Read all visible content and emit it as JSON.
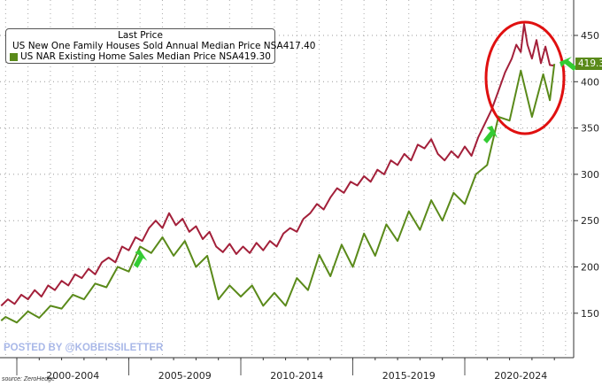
{
  "chart_data": {
    "type": "line",
    "title": "",
    "xlabel": "",
    "ylabel": "",
    "ylim": [
      120,
      480
    ],
    "xlim": [
      1999.25,
      2025.2
    ],
    "y_ticks": [
      150,
      200,
      250,
      300,
      350,
      400,
      450
    ],
    "period_labels": [
      {
        "label": "2000-2004",
        "from": 2000,
        "to": 2005
      },
      {
        "label": "2005-2009",
        "from": 2005,
        "to": 2010
      },
      {
        "label": "2010-2014",
        "from": 2010,
        "to": 2015
      },
      {
        "label": "2015-2019",
        "from": 2015,
        "to": 2020
      },
      {
        "label": "2020-2024",
        "from": 2020,
        "to": 2025
      }
    ],
    "legend_title": "Last Price",
    "grid": true,
    "series": [
      {
        "name": "US New One Family Houses Sold Annual Median Price NSA",
        "last": "417.40",
        "color": "#a3203a",
        "points": [
          [
            1999.3,
            158
          ],
          [
            1999.6,
            165
          ],
          [
            1999.9,
            160
          ],
          [
            2000.2,
            170
          ],
          [
            2000.5,
            165
          ],
          [
            2000.8,
            175
          ],
          [
            2001.1,
            168
          ],
          [
            2001.4,
            180
          ],
          [
            2001.7,
            175
          ],
          [
            2002,
            185
          ],
          [
            2002.3,
            180
          ],
          [
            2002.6,
            192
          ],
          [
            2002.9,
            188
          ],
          [
            2003.2,
            198
          ],
          [
            2003.5,
            192
          ],
          [
            2003.8,
            205
          ],
          [
            2004.1,
            210
          ],
          [
            2004.4,
            205
          ],
          [
            2004.7,
            222
          ],
          [
            2005,
            218
          ],
          [
            2005.3,
            232
          ],
          [
            2005.6,
            228
          ],
          [
            2005.9,
            242
          ],
          [
            2006.2,
            250
          ],
          [
            2006.5,
            242
          ],
          [
            2006.8,
            258
          ],
          [
            2007.1,
            245
          ],
          [
            2007.4,
            252
          ],
          [
            2007.7,
            238
          ],
          [
            2008,
            244
          ],
          [
            2008.3,
            230
          ],
          [
            2008.6,
            238
          ],
          [
            2008.9,
            222
          ],
          [
            2009.2,
            216
          ],
          [
            2009.5,
            225
          ],
          [
            2009.8,
            214
          ],
          [
            2010.1,
            222
          ],
          [
            2010.4,
            215
          ],
          [
            2010.7,
            226
          ],
          [
            2011,
            218
          ],
          [
            2011.3,
            228
          ],
          [
            2011.6,
            222
          ],
          [
            2011.9,
            236
          ],
          [
            2012.2,
            242
          ],
          [
            2012.5,
            238
          ],
          [
            2012.8,
            252
          ],
          [
            2013.1,
            258
          ],
          [
            2013.4,
            268
          ],
          [
            2013.7,
            262
          ],
          [
            2014,
            275
          ],
          [
            2014.3,
            285
          ],
          [
            2014.6,
            280
          ],
          [
            2014.9,
            292
          ],
          [
            2015.2,
            288
          ],
          [
            2015.5,
            298
          ],
          [
            2015.8,
            292
          ],
          [
            2016.1,
            305
          ],
          [
            2016.4,
            300
          ],
          [
            2016.7,
            315
          ],
          [
            2017,
            310
          ],
          [
            2017.3,
            322
          ],
          [
            2017.6,
            315
          ],
          [
            2017.9,
            332
          ],
          [
            2018.2,
            328
          ],
          [
            2018.5,
            338
          ],
          [
            2018.8,
            322
          ],
          [
            2019.1,
            315
          ],
          [
            2019.4,
            325
          ],
          [
            2019.7,
            318
          ],
          [
            2020,
            330
          ],
          [
            2020.3,
            320
          ],
          [
            2020.6,
            340
          ],
          [
            2020.9,
            355
          ],
          [
            2021.2,
            370
          ],
          [
            2021.5,
            390
          ],
          [
            2021.8,
            410
          ],
          [
            2022.1,
            425
          ],
          [
            2022.3,
            440
          ],
          [
            2022.5,
            432
          ],
          [
            2022.65,
            462
          ],
          [
            2022.8,
            440
          ],
          [
            2023,
            425
          ],
          [
            2023.2,
            445
          ],
          [
            2023.4,
            420
          ],
          [
            2023.6,
            438
          ],
          [
            2023.8,
            418
          ],
          [
            2024.0,
            417.4
          ]
        ]
      },
      {
        "name": "US NAR Existing Home Sales Median Price NSA",
        "last": "419.30",
        "color": "#5a8a1a",
        "points": [
          [
            1999.3,
            142
          ],
          [
            1999.5,
            146
          ],
          [
            2000,
            140
          ],
          [
            2000.5,
            152
          ],
          [
            2001,
            145
          ],
          [
            2001.5,
            158
          ],
          [
            2002,
            155
          ],
          [
            2002.5,
            170
          ],
          [
            2003,
            165
          ],
          [
            2003.5,
            182
          ],
          [
            2004,
            178
          ],
          [
            2004.5,
            200
          ],
          [
            2005,
            195
          ],
          [
            2005.5,
            222
          ],
          [
            2006,
            215
          ],
          [
            2006.5,
            232
          ],
          [
            2007,
            212
          ],
          [
            2007.5,
            228
          ],
          [
            2008,
            200
          ],
          [
            2008.5,
            212
          ],
          [
            2009,
            165
          ],
          [
            2009.5,
            180
          ],
          [
            2010,
            168
          ],
          [
            2010.5,
            180
          ],
          [
            2011,
            158
          ],
          [
            2011.5,
            172
          ],
          [
            2012,
            158
          ],
          [
            2012.5,
            188
          ],
          [
            2013,
            175
          ],
          [
            2013.5,
            213
          ],
          [
            2014,
            190
          ],
          [
            2014.5,
            224
          ],
          [
            2015,
            200
          ],
          [
            2015.5,
            236
          ],
          [
            2016,
            212
          ],
          [
            2016.5,
            246
          ],
          [
            2017,
            228
          ],
          [
            2017.5,
            260
          ],
          [
            2018,
            240
          ],
          [
            2018.5,
            272
          ],
          [
            2019,
            250
          ],
          [
            2019.5,
            280
          ],
          [
            2020,
            268
          ],
          [
            2020.5,
            300
          ],
          [
            2021,
            310
          ],
          [
            2021.5,
            362
          ],
          [
            2022,
            358
          ],
          [
            2022.5,
            412
          ],
          [
            2023,
            362
          ],
          [
            2023.5,
            408
          ],
          [
            2023.8,
            380
          ],
          [
            2024.0,
            419.3
          ]
        ]
      }
    ]
  },
  "watermark": "POSTED BY @KOBEISSILETTER",
  "source": "source: ZeroHedge",
  "price_tag": "419.30"
}
